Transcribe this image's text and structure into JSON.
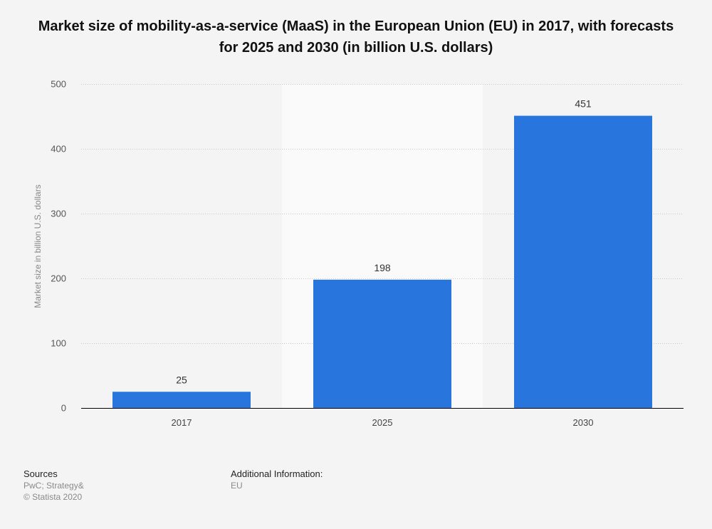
{
  "page": {
    "background": "#f4f4f4"
  },
  "chart_data": {
    "type": "bar",
    "title": "Market size of mobility-as-a-service (MaaS) in the European Union (EU) in 2017, with forecasts for 2025 and 2030 (in billion U.S. dollars)",
    "categories": [
      "2017",
      "2025",
      "2030"
    ],
    "values": [
      25,
      198,
      451
    ],
    "value_labels": [
      "25",
      "198",
      "451"
    ],
    "xlabel": "",
    "ylabel": "Market size in billion U.S. dollars",
    "ylim": [
      0,
      500
    ],
    "yticks": [
      0,
      100,
      200,
      300,
      400,
      500
    ],
    "ytick_labels": [
      "0",
      "100",
      "200",
      "300",
      "400",
      "500"
    ],
    "grid": true,
    "highlighted_category": "2025",
    "bar_color": "#2876dd",
    "highlight_band_color": "#fafafa"
  },
  "footer": {
    "sources_heading": "Sources",
    "sources_lines": [
      "PwC; Strategy&",
      "© Statista 2020"
    ],
    "additional_heading": "Additional Information:",
    "additional_lines": [
      "EU"
    ]
  }
}
